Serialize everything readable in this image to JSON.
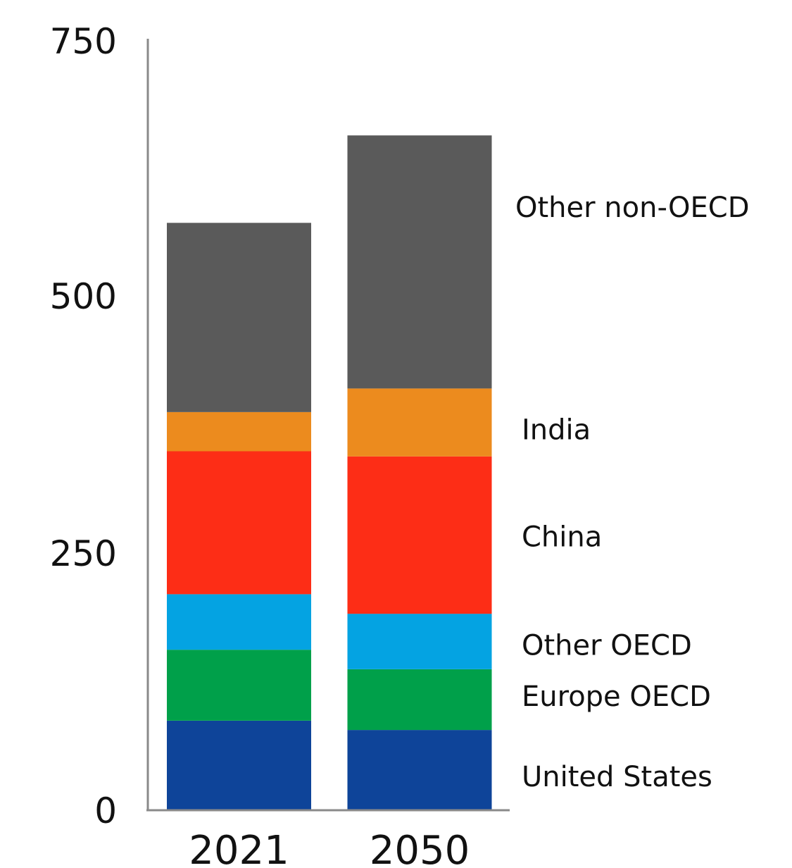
{
  "chart_data": {
    "type": "bar",
    "stacked": true,
    "title": "",
    "xlabel": "",
    "ylabel": "",
    "categories": [
      "2021",
      "2050"
    ],
    "ylim": [
      0,
      750
    ],
    "yticks": [
      0,
      250,
      500,
      750
    ],
    "grid": false,
    "legend": "labels right of bars",
    "series": [
      {
        "name": "United States",
        "color": "#0e4499",
        "values": [
          87,
          78
        ]
      },
      {
        "name": "Europe OECD",
        "color": "#00a04a",
        "values": [
          69,
          59
        ]
      },
      {
        "name": "Other OECD",
        "color": "#04a3e2",
        "values": [
          54,
          54
        ]
      },
      {
        "name": "China",
        "color": "#fd2d16",
        "values": [
          139,
          153
        ]
      },
      {
        "name": "India",
        "color": "#ec8b1e",
        "values": [
          38,
          66
        ]
      },
      {
        "name": "Other non-OECD",
        "color": "#5a5a5a",
        "values": [
          184,
          246
        ]
      }
    ]
  }
}
